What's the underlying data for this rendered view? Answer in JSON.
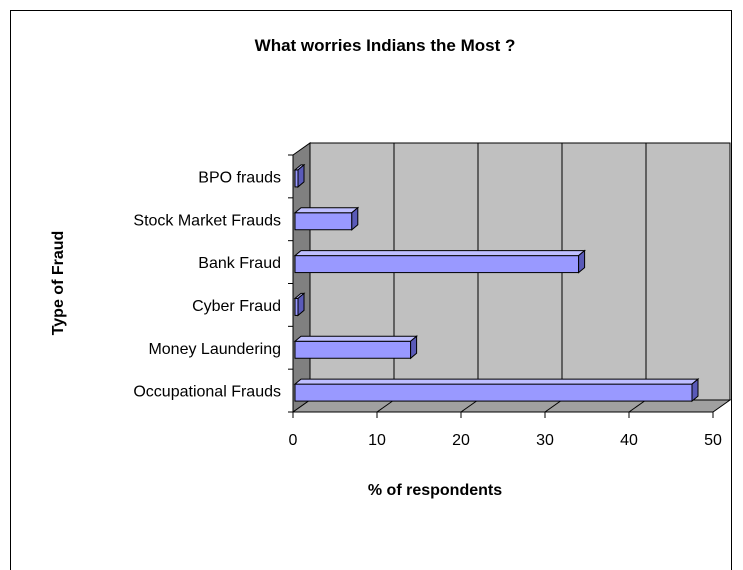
{
  "chart_data": {
    "type": "bar",
    "orientation": "horizontal",
    "title": "What worries Indians the Most ?",
    "xlabel": "% of respondents",
    "ylabel": "Type of Fraud",
    "categories": [
      "BPO frauds",
      "Stock Market Frauds",
      "Bank Fraud",
      "Cyber Fraud",
      "Money Laundering",
      "Occupational Frauds"
    ],
    "values": [
      0.5,
      7,
      34,
      0.5,
      14,
      47.5
    ],
    "xlim": [
      0,
      50
    ],
    "xticks": [
      "0",
      "10",
      "20",
      "30",
      "40",
      "50"
    ],
    "grid": true,
    "three_d": true,
    "colors": {
      "bar_front": "#9999ff",
      "bar_top": "#bfbfff",
      "bar_side": "#5a5ab8",
      "plot_back": "#c0c0c0",
      "plot_side": "#808080",
      "plot_floor": "#a0a0a0"
    }
  }
}
